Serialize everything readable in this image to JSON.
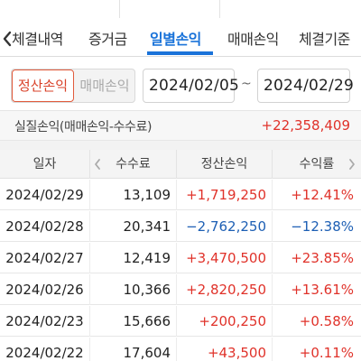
{
  "tabs": [
    {
      "label": "체결내역",
      "active": false
    },
    {
      "label": "증거금",
      "active": false
    },
    {
      "label": "일별손익",
      "active": true
    },
    {
      "label": "매매손익",
      "active": false
    },
    {
      "label": "체결기준",
      "active": false
    }
  ],
  "filter": {
    "segment": [
      "정산손익",
      "매매손익"
    ],
    "selected_segment": "정산손익",
    "date_from": "2024/02/05",
    "date_separator": "~",
    "date_to": "2024/02/29"
  },
  "summary": {
    "label": "실질손익(매매손익-수수료)",
    "value": "+22,358,409"
  },
  "table": {
    "headers": [
      "일자",
      "수수료",
      "정산손익",
      "수익률"
    ],
    "rows": [
      {
        "date": "2024/02/29",
        "fee": "13,109",
        "pl": "+1,719,250",
        "rate": "+12.41%",
        "sign": "pos"
      },
      {
        "date": "2024/02/28",
        "fee": "20,341",
        "pl": "−2,762,250",
        "rate": "−12.38%",
        "sign": "neg"
      },
      {
        "date": "2024/02/27",
        "fee": "12,419",
        "pl": "+3,470,500",
        "rate": "+23.85%",
        "sign": "pos"
      },
      {
        "date": "2024/02/26",
        "fee": "10,366",
        "pl": "+2,820,250",
        "rate": "+13.61%",
        "sign": "pos"
      },
      {
        "date": "2024/02/23",
        "fee": "15,666",
        "pl": "+200,250",
        "rate": "+0.58%",
        "sign": "pos"
      },
      {
        "date": "2024/02/22",
        "fee": "17,604",
        "pl": "+43,500",
        "rate": "+0.11%",
        "sign": "pos"
      }
    ]
  },
  "colors": {
    "accent": "#1a73d9",
    "positive": "#e0322a",
    "negative": "#1d5fb4",
    "segment_active": "#d9422a"
  },
  "icons": [
    "chevron-left-icon",
    "header-chevron-left-icon",
    "header-chevron-right-icon"
  ]
}
